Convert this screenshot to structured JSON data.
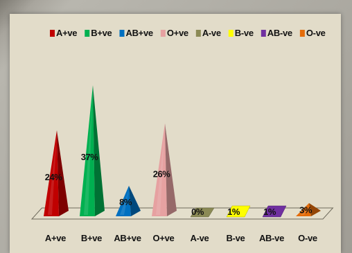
{
  "chart_data": {
    "type": "bar",
    "style": "3d-pyramid",
    "categories": [
      "A+ve",
      "B+ve",
      "AB+ve",
      "O+ve",
      "A-ve",
      "B-ve",
      "AB-ve",
      "O-ve"
    ],
    "series": [
      {
        "values": [
          24,
          37,
          8,
          26,
          0,
          1,
          1,
          3
        ],
        "data_labels": [
          "24%",
          "37%",
          "8%",
          "26%",
          "0%",
          "1%",
          "1%",
          "3%"
        ],
        "colors": [
          "#c00000",
          "#00b050",
          "#0070c0",
          "#e6a1a1",
          "#8b8a55",
          "#ffff00",
          "#7030a0",
          "#e46c0a"
        ]
      }
    ],
    "legend": {
      "placement": "top",
      "entries": [
        {
          "label": "A+ve",
          "color": "#c00000"
        },
        {
          "label": "B+ve",
          "color": "#00b050"
        },
        {
          "label": "AB+ve",
          "color": "#0070c0"
        },
        {
          "label": "O+ve",
          "color": "#e6a1a1"
        },
        {
          "label": "A-ve",
          "color": "#8b8a55"
        },
        {
          "label": "B-ve",
          "color": "#ffff00"
        },
        {
          "label": "AB-ve",
          "color": "#7030a0"
        },
        {
          "label": "O-ve",
          "color": "#e46c0a"
        }
      ]
    },
    "ylim": [
      0,
      40
    ],
    "grid": false,
    "title": "",
    "xlabel": "",
    "ylabel": ""
  }
}
